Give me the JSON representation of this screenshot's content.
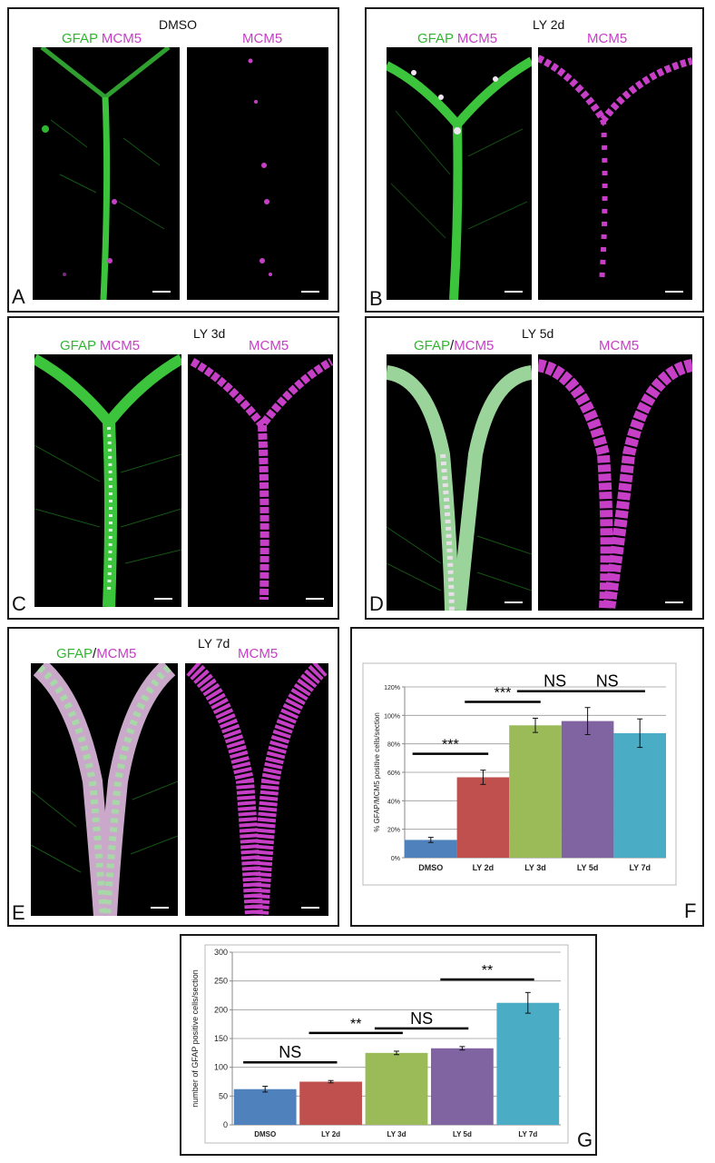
{
  "panels": [
    {
      "letter": "A",
      "title": "DMSO",
      "label_gfap": "GFAP",
      "label_sep": " ",
      "label_mcm5": "MCM5",
      "label_right": "MCM5"
    },
    {
      "letter": "B",
      "title": "LY 2d",
      "label_gfap": "GFAP",
      "label_sep": " ",
      "label_mcm5": "MCM5",
      "label_right": "MCM5"
    },
    {
      "letter": "C",
      "title": "LY 3d",
      "label_gfap": "GFAP",
      "label_sep": " ",
      "label_mcm5": "MCM5",
      "label_right": "MCM5"
    },
    {
      "letter": "D",
      "title": "LY 5d",
      "label_gfap": "GFAP",
      "label_sep": "/",
      "label_mcm5": "MCM5",
      "label_right": "MCM5"
    },
    {
      "letter": "E",
      "title": "LY 7d",
      "label_gfap": "GFAP",
      "label_sep": "/",
      "label_mcm5": "MCM5",
      "label_right": "MCM5"
    }
  ],
  "chart_data": [
    {
      "id": "F",
      "type": "bar",
      "categories": [
        "DMSO",
        "LY 2d",
        "LY 3d",
        "LY 5d",
        "LY 7d"
      ],
      "values": [
        12.5,
        56.5,
        93,
        96,
        87.5
      ],
      "errors": [
        1.8,
        5,
        5,
        9.5,
        10
      ],
      "colors": [
        "#4f81bd",
        "#c0504d",
        "#9bbb59",
        "#8064a2",
        "#4bacc6"
      ],
      "ylabel": "% GFAP/MCM5 positive cells/section",
      "ylim": [
        0,
        120
      ],
      "yticks": [
        "0%",
        "20%",
        "40%",
        "60%",
        "80%",
        "100%",
        "120%"
      ],
      "grid": true,
      "significance": [
        {
          "from": 0,
          "to": 1,
          "label": "***"
        },
        {
          "from": 1,
          "to": 2,
          "label": "***"
        },
        {
          "from": 2,
          "to": 3,
          "label": "NS"
        },
        {
          "from": 3,
          "to": 4,
          "label": "NS"
        }
      ]
    },
    {
      "id": "G",
      "type": "bar",
      "categories": [
        "DMSO",
        "LY 2d",
        "LY 3d",
        "LY 5d",
        "LY 7d"
      ],
      "values": [
        62,
        75,
        125,
        133,
        212
      ],
      "errors": [
        5,
        2,
        3,
        3,
        18
      ],
      "colors": [
        "#4f81bd",
        "#c0504d",
        "#9bbb59",
        "#8064a2",
        "#4bacc6"
      ],
      "ylabel": "number of GFAP positive cells/section",
      "ylim": [
        0,
        300
      ],
      "yticks": [
        "0",
        "50",
        "100",
        "150",
        "200",
        "250",
        "300"
      ],
      "grid": true,
      "significance": [
        {
          "from": 0,
          "to": 1,
          "label": "NS"
        },
        {
          "from": 1,
          "to": 2,
          "label": "**"
        },
        {
          "from": 2,
          "to": 3,
          "label": "NS"
        },
        {
          "from": 3,
          "to": 4,
          "label": "**"
        }
      ]
    }
  ]
}
